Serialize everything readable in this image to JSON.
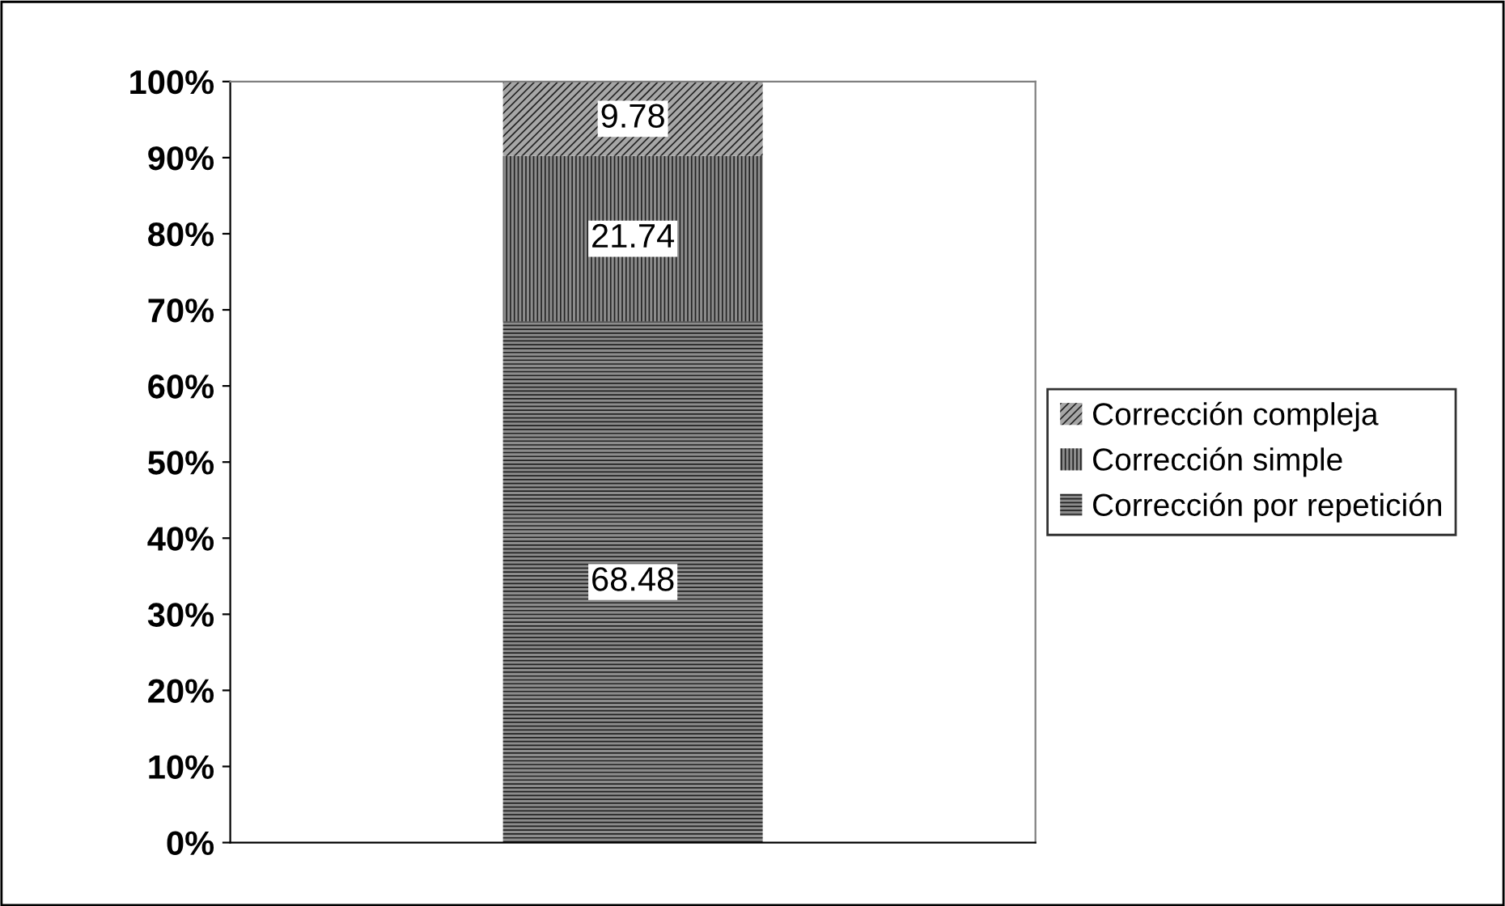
{
  "chart_data": {
    "type": "bar",
    "stacked": true,
    "categories": [
      null
    ],
    "series": [
      {
        "name": "Corrección por repetición",
        "color": "#8c8c8c",
        "values": [
          68.48
        ]
      },
      {
        "name": "Corrección simple",
        "color": "#8c8c8c",
        "values": [
          21.74
        ]
      },
      {
        "name": "Corrección compleja",
        "color": "#a6a6a6",
        "values": [
          9.78
        ]
      }
    ],
    "ylim": [
      0,
      100
    ],
    "yticks": [
      {
        "value": 0,
        "label": "0%"
      },
      {
        "value": 10,
        "label": "10%"
      },
      {
        "value": 20,
        "label": "20%"
      },
      {
        "value": 30,
        "label": "30%"
      },
      {
        "value": 40,
        "label": "40%"
      },
      {
        "value": 50,
        "label": "50%"
      },
      {
        "value": 60,
        "label": "60%"
      },
      {
        "value": 70,
        "label": "70%"
      },
      {
        "value": 80,
        "label": "80%"
      },
      {
        "value": 90,
        "label": "90%"
      },
      {
        "value": 100,
        "label": "100%"
      }
    ],
    "data_labels": true,
    "legend": "right",
    "grid": false
  }
}
